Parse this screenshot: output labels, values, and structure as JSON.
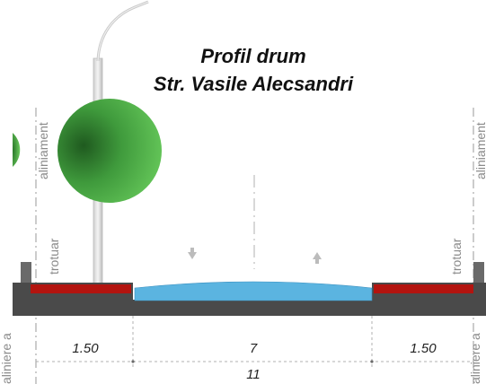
{
  "title": {
    "line1": "Profil drum",
    "line2": "Str. Vasile Alecsandri"
  },
  "labels": {
    "aliniament_left": "aliniament",
    "aliniament_right": "aliniament",
    "trotuar_left": "trotuar",
    "trotuar_right": "trotuar",
    "aliniere_left": "aliniere a",
    "aliniere_right": "aliniere a"
  },
  "dimensions": {
    "sidewalk_left": "1.50",
    "carriageway": "7",
    "sidewalk_right": "1.50",
    "total": "11"
  },
  "colors": {
    "sidewalk": "#b3140f",
    "carriageway": "#5bb4e0",
    "structure": "#4a4a4a",
    "tree": "#3f9a3c"
  },
  "icons": [
    "tree-icon",
    "street-lamp-icon",
    "arrow-down-icon",
    "arrow-up-icon"
  ]
}
